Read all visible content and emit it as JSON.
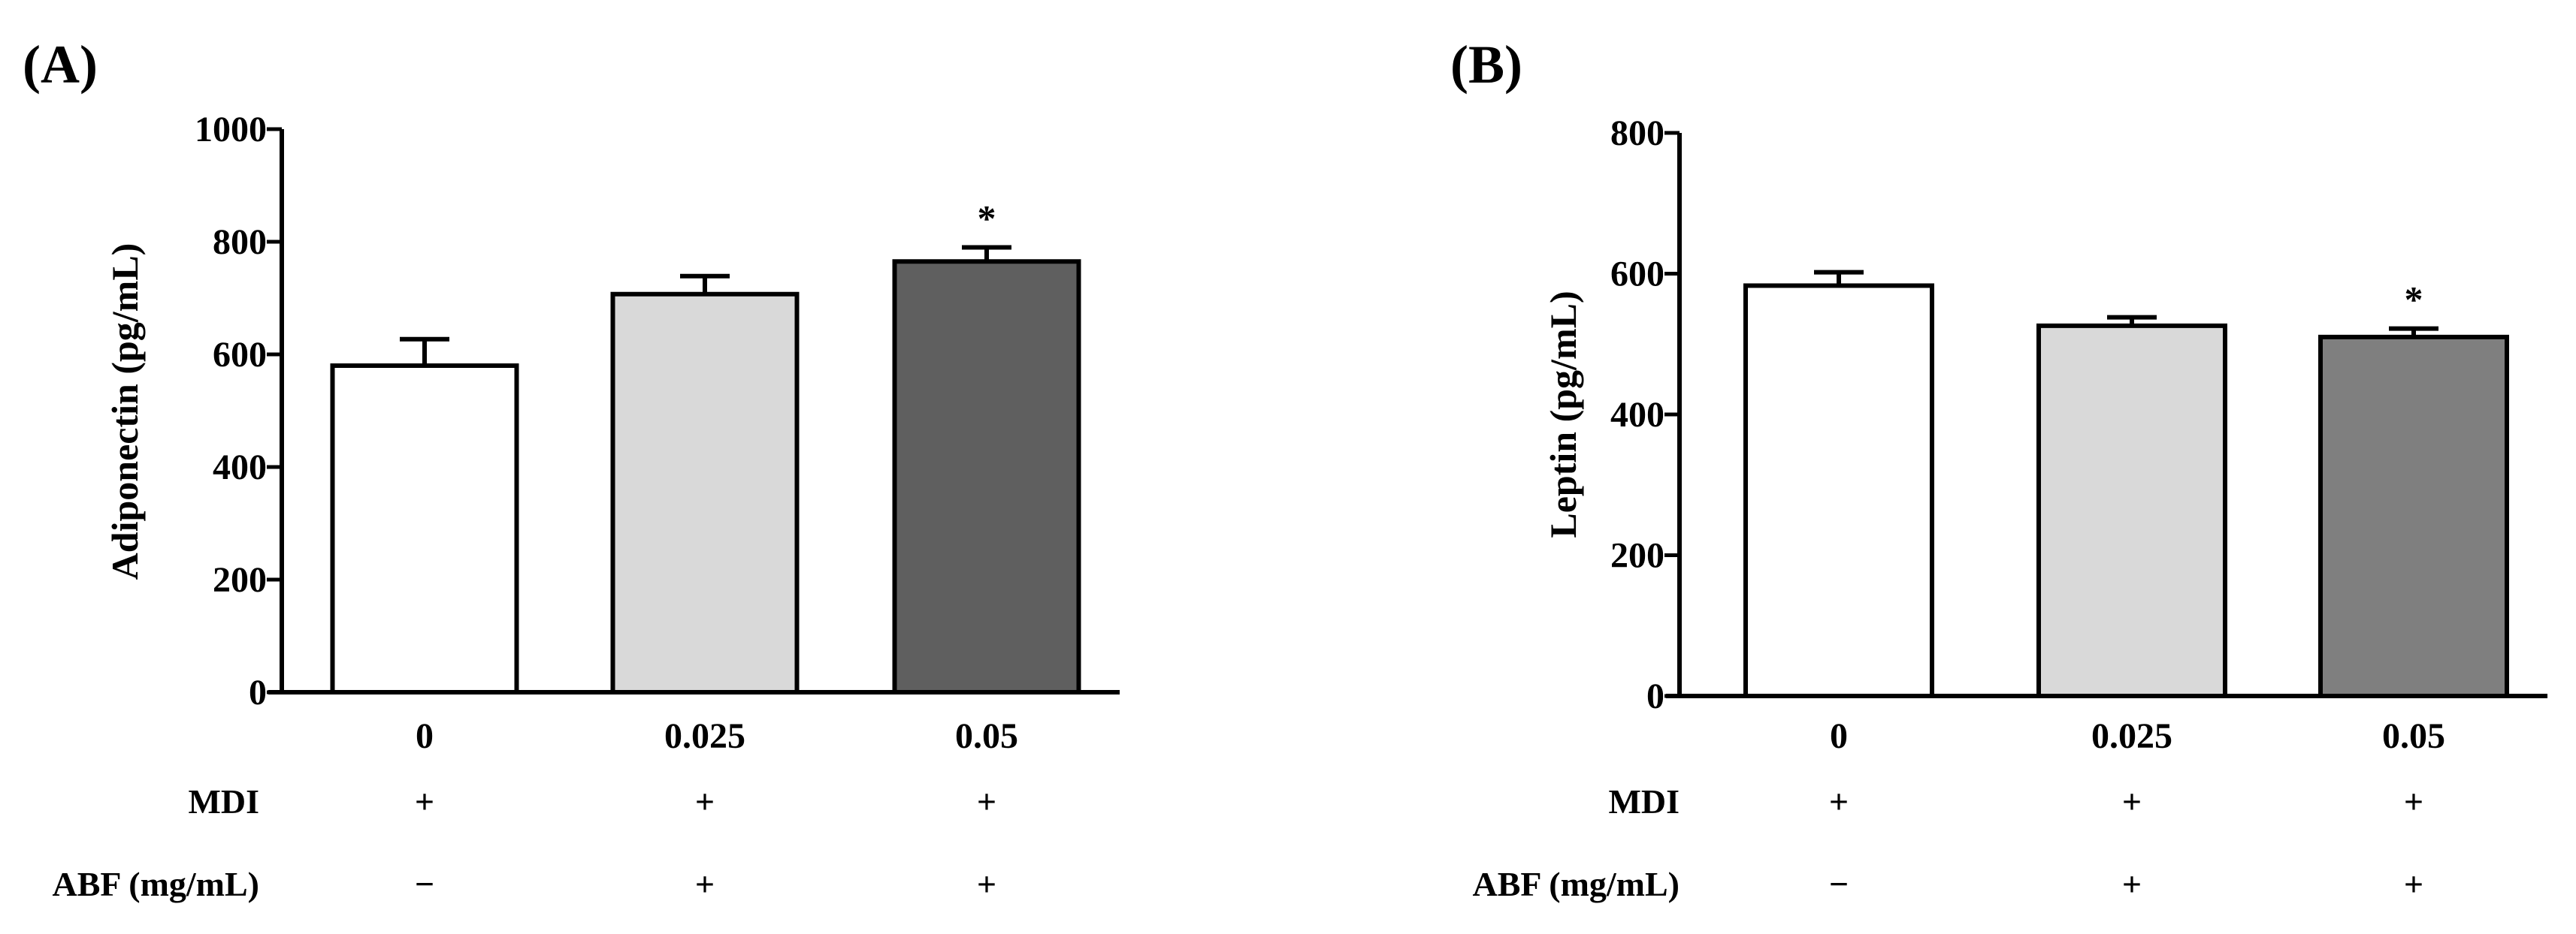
{
  "chart_data": [
    {
      "type": "bar",
      "panel_label": "(A)",
      "ylabel": "Adiponectin (pg/mL)",
      "ylim": [
        0,
        1000
      ],
      "y_ticks": [
        "0",
        "200",
        "400",
        "600",
        "800",
        "1000"
      ],
      "y_tick_values": [
        0,
        200,
        400,
        600,
        800,
        1000
      ],
      "categories": [
        "0",
        "0.025",
        "0.05"
      ],
      "values": [
        580,
        707,
        765
      ],
      "errors": [
        47,
        32,
        25
      ],
      "bar_colors": [
        "#ffffff",
        "#d9d9d9",
        "#5f5f5f"
      ],
      "significance": [
        "",
        "",
        "*"
      ],
      "row_labels": [
        "MDI",
        "ABF (mg/mL)"
      ],
      "treatments": [
        [
          "+",
          "+",
          "+"
        ],
        [
          "−",
          "+",
          "+"
        ]
      ]
    },
    {
      "type": "bar",
      "panel_label": "(B)",
      "ylabel": "Leptin (pg/mL)",
      "ylim": [
        0,
        800
      ],
      "y_ticks": [
        "0",
        "200",
        "400",
        "600",
        "800"
      ],
      "y_tick_values": [
        0,
        200,
        400,
        600,
        800
      ],
      "categories": [
        "0",
        "0.025",
        "0.05"
      ],
      "values": [
        583,
        526,
        510
      ],
      "errors": [
        19,
        12,
        12
      ],
      "bar_colors": [
        "#ffffff",
        "#d9d9d9",
        "#7f7f7f"
      ],
      "significance": [
        "",
        "",
        "*"
      ],
      "row_labels": [
        "MDI",
        "ABF (mg/mL)"
      ],
      "treatments": [
        [
          "+",
          "+",
          "+"
        ],
        [
          "−",
          "+",
          "+"
        ]
      ]
    }
  ]
}
